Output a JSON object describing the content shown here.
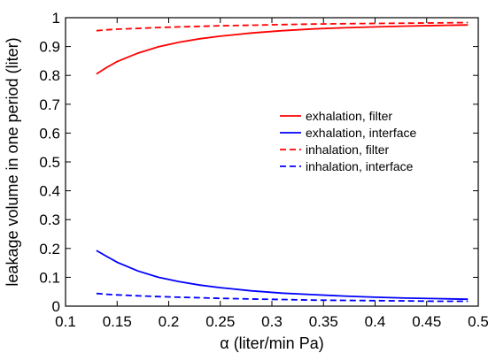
{
  "chart_data": {
    "type": "line",
    "title": "",
    "xlabel": "α  (liter/min Pa)",
    "ylabel": "leakage volume in one period  (liter)",
    "xlim": [
      0.1,
      0.5
    ],
    "ylim": [
      0,
      1
    ],
    "xticks": [
      0.1,
      0.15,
      0.2,
      0.25,
      0.3,
      0.35,
      0.4,
      0.45,
      0.5
    ],
    "xtick_labels": [
      "0.1",
      "0.15",
      "0.2",
      "0.25",
      "0.3",
      "0.35",
      "0.4",
      "0.45",
      "0.5"
    ],
    "yticks": [
      0,
      0.1,
      0.2,
      0.3,
      0.4,
      0.5,
      0.6,
      0.7,
      0.8,
      0.9,
      1
    ],
    "ytick_labels": [
      "0",
      "0.1",
      "0.2",
      "0.3",
      "0.4",
      "0.5",
      "0.6",
      "0.7",
      "0.8",
      "0.9",
      "1"
    ],
    "grid": false,
    "legend_position": "right-middle",
    "x": [
      0.13,
      0.14,
      0.15,
      0.17,
      0.19,
      0.21,
      0.23,
      0.25,
      0.28,
      0.31,
      0.34,
      0.37,
      0.4,
      0.43,
      0.46,
      0.49
    ],
    "series": [
      {
        "name": "exhalation, filter",
        "color": "#ff0000",
        "dash": "solid",
        "values": [
          0.805,
          0.828,
          0.848,
          0.877,
          0.899,
          0.915,
          0.927,
          0.936,
          0.947,
          0.955,
          0.961,
          0.965,
          0.968,
          0.971,
          0.973,
          0.975
        ]
      },
      {
        "name": "exhalation, interface",
        "color": "#0000ff",
        "dash": "solid",
        "values": [
          0.193,
          0.172,
          0.152,
          0.122,
          0.1,
          0.085,
          0.073,
          0.064,
          0.053,
          0.045,
          0.04,
          0.035,
          0.031,
          0.028,
          0.026,
          0.024
        ]
      },
      {
        "name": "inhalation, filter",
        "color": "#ff0000",
        "dash": "dashed",
        "values": [
          0.955,
          0.958,
          0.96,
          0.963,
          0.966,
          0.968,
          0.97,
          0.972,
          0.974,
          0.976,
          0.978,
          0.979,
          0.98,
          0.981,
          0.982,
          0.983
        ]
      },
      {
        "name": "inhalation, interface",
        "color": "#0000ff",
        "dash": "dashed",
        "values": [
          0.044,
          0.041,
          0.039,
          0.036,
          0.033,
          0.031,
          0.029,
          0.027,
          0.025,
          0.023,
          0.021,
          0.02,
          0.019,
          0.018,
          0.017,
          0.017
        ]
      }
    ]
  }
}
